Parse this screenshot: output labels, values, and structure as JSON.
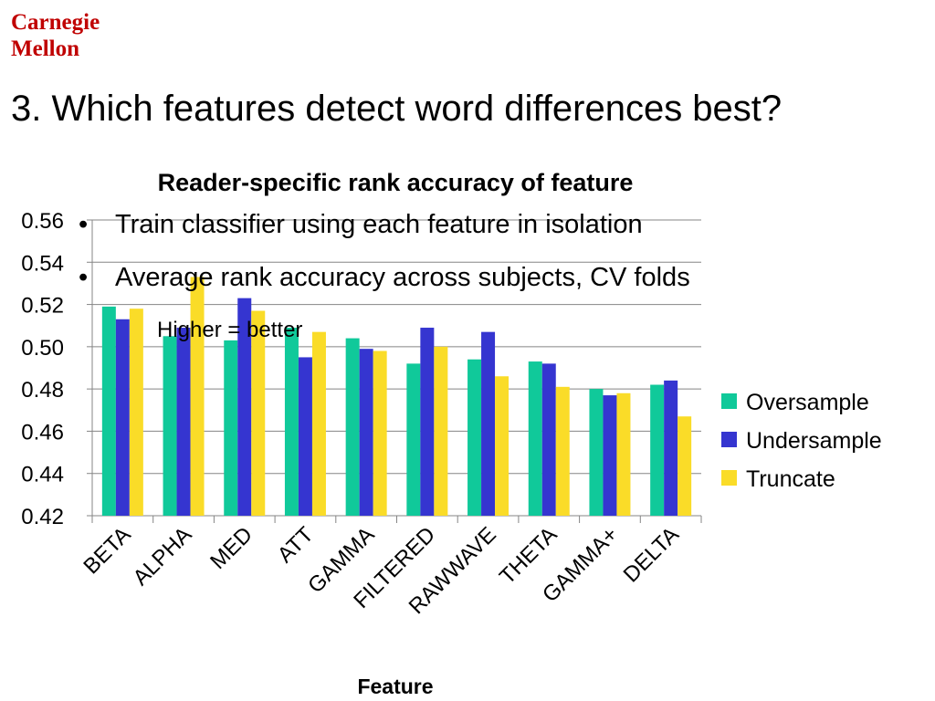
{
  "brand": {
    "line1": "Carnegie",
    "line2": "Mellon"
  },
  "slide": {
    "title": "3. Which features detect word differences best?",
    "bullets": [
      "Train classifier using each feature in isolation",
      "Average rank accuracy across subjects, CV folds"
    ],
    "sub_bullet": "Higher = better"
  },
  "colors": {
    "brand": "#c00000",
    "Oversample": "#10c99a",
    "Undersample": "#3535d0",
    "Truncate": "#fadc28"
  },
  "chart_data": {
    "type": "bar",
    "title": "Reader-specific rank accuracy of feature",
    "xlabel": "Feature",
    "ylabel": "",
    "ylim": [
      0.42,
      0.56
    ],
    "yticks": [
      "0.56",
      "0.54",
      "0.52",
      "0.50",
      "0.48",
      "0.46",
      "0.44",
      "0.42"
    ],
    "ytick_values": [
      0.56,
      0.54,
      0.52,
      0.5,
      0.48,
      0.46,
      0.44,
      0.42
    ],
    "grid": true,
    "legend_position": "right",
    "categories": [
      "BETA",
      "ALPHA",
      "MED",
      "ATT",
      "GAMMA",
      "FILTERED",
      "RAWWAVE",
      "THETA",
      "GAMMA+",
      "DELTA"
    ],
    "series": [
      {
        "name": "Oversample",
        "values": [
          0.519,
          0.505,
          0.503,
          0.509,
          0.504,
          0.492,
          0.494,
          0.493,
          0.48,
          0.482
        ]
      },
      {
        "name": "Undersample",
        "values": [
          0.513,
          0.509,
          0.523,
          0.495,
          0.499,
          0.509,
          0.507,
          0.492,
          0.477,
          0.484
        ]
      },
      {
        "name": "Truncate",
        "values": [
          0.518,
          0.533,
          0.517,
          0.507,
          0.498,
          0.5,
          0.486,
          0.481,
          0.478,
          0.467
        ]
      }
    ]
  }
}
